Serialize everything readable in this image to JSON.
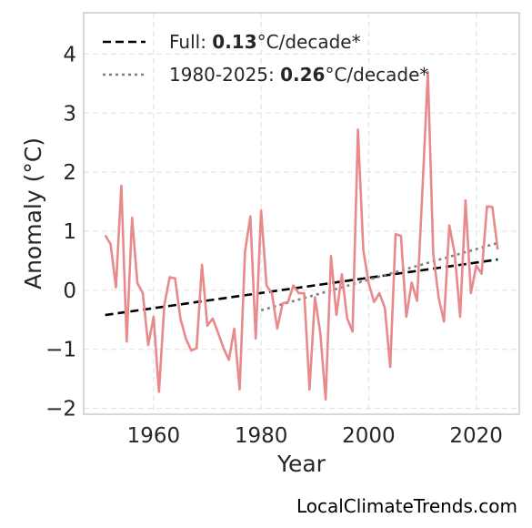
{
  "chart_data": {
    "type": "line",
    "xlabel": "Year",
    "ylabel": "Anomaly (°C)",
    "xlim": [
      1947,
      2028
    ],
    "ylim": [
      -2.1,
      4.7
    ],
    "xticks": [
      1960,
      1980,
      2000,
      2020
    ],
    "xtick_labels": [
      "1960",
      "1980",
      "2000",
      "2020"
    ],
    "yticks": [
      -2,
      -1,
      0,
      1,
      2,
      3,
      4
    ],
    "ytick_labels": [
      "−2",
      "−1",
      "0",
      "1",
      "2",
      "3",
      "4"
    ],
    "grid": true,
    "legend_position": "top-left",
    "series": [
      {
        "x": [
          1951,
          1952,
          1953,
          1954,
          1955,
          1956,
          1957,
          1958,
          1959,
          1960,
          1961,
          1962,
          1963,
          1964,
          1965,
          1966,
          1967,
          1968,
          1969,
          1970,
          1971,
          1972,
          1973,
          1974,
          1975,
          1976,
          1977,
          1978,
          1979,
          1980,
          1981,
          1982,
          1983,
          1984,
          1985,
          1986,
          1987,
          1988,
          1989,
          1990,
          1991,
          1992,
          1993,
          1994,
          1995,
          1996,
          1997,
          1998,
          1999,
          2000,
          2001,
          2002,
          2003,
          2004,
          2005,
          2006,
          2007,
          2008,
          2009,
          2010,
          2011,
          2012,
          2013,
          2014,
          2015,
          2016,
          2017,
          2018,
          2019,
          2020,
          2021,
          2022,
          2023,
          2024
        ],
        "values": [
          0.93,
          0.78,
          0.05,
          1.77,
          -0.87,
          1.23,
          0.12,
          -0.05,
          -0.93,
          -0.45,
          -1.72,
          -0.25,
          0.22,
          0.2,
          -0.48,
          -0.82,
          -1.02,
          -0.98,
          0.43,
          -0.6,
          -0.48,
          -0.72,
          -0.98,
          -1.18,
          -0.65,
          -1.68,
          0.65,
          1.25,
          -0.82,
          1.35,
          0.08,
          -0.05,
          -0.65,
          -0.22,
          -0.2,
          0.08,
          -0.05,
          -0.05,
          -1.68,
          -0.12,
          -0.72,
          -1.85,
          0.58,
          -0.42,
          0.27,
          -0.48,
          -0.7,
          2.72,
          0.68,
          0.12,
          -0.2,
          -0.05,
          -0.3,
          -1.3,
          0.95,
          0.92,
          -0.45,
          0.13,
          -0.18,
          1.72,
          3.7,
          0.62,
          -0.12,
          -0.53,
          1.1,
          0.62,
          -0.45,
          1.52,
          -0.05,
          0.42,
          0.28,
          1.42,
          1.41,
          0.69
        ],
        "color": "#e8898c"
      }
    ],
    "trends": [
      {
        "label_prefix": "Full: ",
        "label_value": "0.13",
        "label_suffix": "°C/decade*",
        "x": [
          1951,
          2024
        ],
        "y": [
          -0.42,
          0.52
        ],
        "color": "#000000",
        "style": "dashed"
      },
      {
        "label_prefix": "1980-2025: ",
        "label_value": "0.26",
        "label_suffix": "°C/decade*",
        "x": [
          1980,
          2024
        ],
        "y": [
          -0.34,
          0.8
        ],
        "color": "#808080",
        "style": "dotted"
      }
    ]
  },
  "watermark": "LocalClimateTrends.com"
}
